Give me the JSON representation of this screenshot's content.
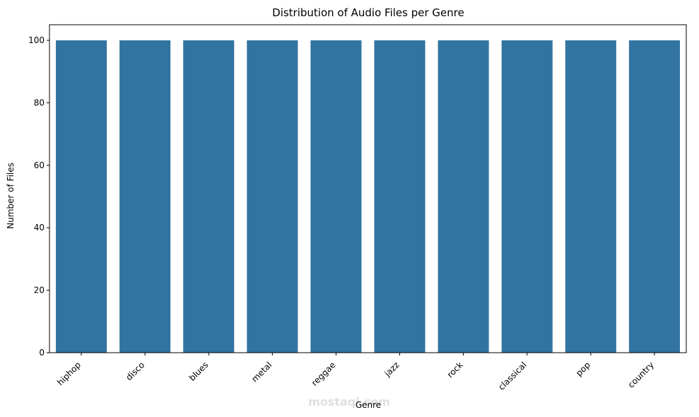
{
  "chart_data": {
    "type": "bar",
    "title": "Distribution of Audio Files per Genre",
    "xlabel": "Genre",
    "ylabel": "Number of Files",
    "categories": [
      "hiphop",
      "disco",
      "blues",
      "metal",
      "reggae",
      "jazz",
      "rock",
      "classical",
      "pop",
      "country"
    ],
    "values": [
      100,
      100,
      100,
      100,
      100,
      100,
      100,
      100,
      100,
      100
    ],
    "ylim": [
      0,
      105
    ],
    "yticks": [
      0,
      20,
      40,
      60,
      80,
      100
    ],
    "bar_color": "#3274a1",
    "grid": false,
    "legend": "none"
  },
  "watermark": {
    "text": "mostaql.com"
  }
}
